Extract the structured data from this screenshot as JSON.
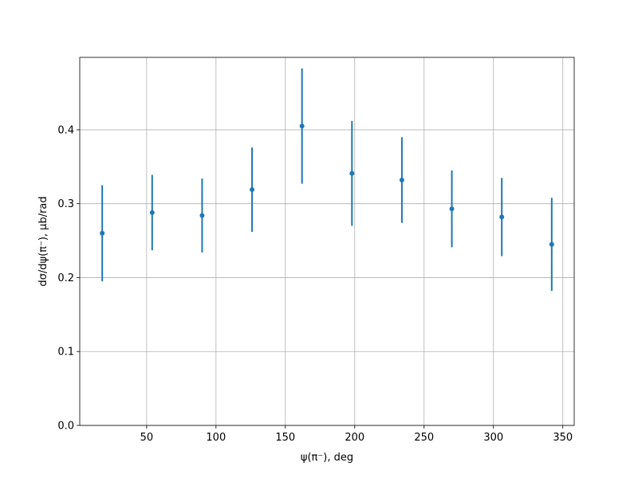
{
  "chart_data": {
    "type": "errorbar",
    "xlabel": "ψ(π⁻), deg",
    "ylabel": "dσ/dψ(π⁻), μb/rad",
    "x": [
      18,
      54,
      90,
      126,
      162,
      198,
      234,
      270,
      306,
      342
    ],
    "values": [
      0.26,
      0.288,
      0.284,
      0.319,
      0.405,
      0.341,
      0.332,
      0.293,
      0.282,
      0.245
    ],
    "errors": [
      0.065,
      0.051,
      0.05,
      0.057,
      0.078,
      0.071,
      0.058,
      0.052,
      0.053,
      0.063
    ],
    "color": "#1f77b4",
    "xlim": [
      1.8,
      358.2
    ],
    "ylim": [
      0,
      0.498
    ],
    "xticks": [
      50,
      100,
      150,
      200,
      250,
      300,
      350
    ],
    "yticks": [
      {
        "value": 0,
        "label": "0.0"
      },
      0.1,
      0.2,
      0.3,
      0.4
    ],
    "grid": true
  }
}
